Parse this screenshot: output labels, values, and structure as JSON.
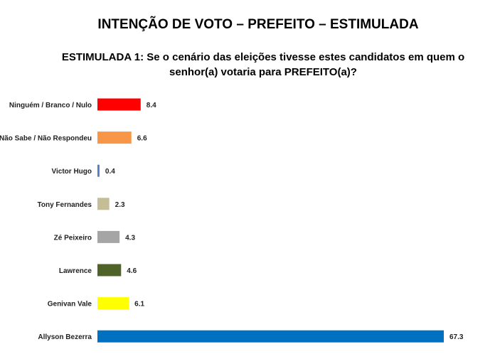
{
  "chart_data": {
    "type": "bar",
    "orientation": "horizontal",
    "title": "INTENÇÃO DE VOTO – PREFEITO – ESTIMULADA",
    "subtitle": "ESTIMULADA 1: Se o cenário das eleições tivesse estes candidatos em quem o senhor(a) votaria para PREFEITO(a)?",
    "categories": [
      "Ninguém / Branco / Nulo",
      "Não Sabe / Não Respondeu",
      "Victor Hugo",
      "Tony Fernandes",
      "Zé Peixeiro",
      "Lawrence",
      "Genivan Vale",
      "Allyson Bezerra"
    ],
    "values": [
      8.4,
      6.6,
      0.4,
      2.3,
      4.3,
      4.6,
      6.1,
      67.3
    ],
    "value_labels": [
      "8.4",
      "6.6",
      "0.4",
      "2.3",
      "4.3",
      "4.6",
      "6.1",
      "67.3"
    ],
    "colors": [
      "#ff0000",
      "#f79646",
      "#4f81bd",
      "#c4bd97",
      "#a5a5a5",
      "#4f6228",
      "#ffff00",
      "#0070c0"
    ],
    "xlim": [
      0,
      67.3
    ],
    "grid": false,
    "legend": "none"
  }
}
